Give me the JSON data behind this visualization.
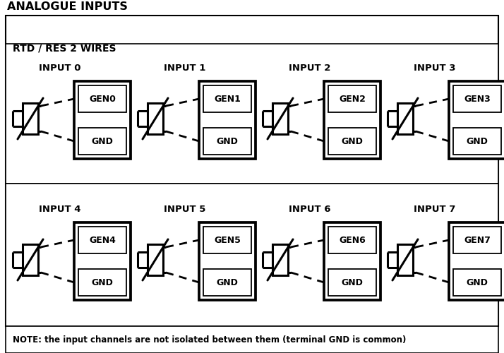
{
  "title": "ANALOGUE INPUTS",
  "subtitle": "RTD / RES 2 WIRES",
  "note": "NOTE: the input channels are not isolated between them (terminal GND is common)",
  "inputs": [
    "INPUT 0",
    "INPUT 1",
    "INPUT 2",
    "INPUT 3",
    "INPUT 4",
    "INPUT 5",
    "INPUT 6",
    "INPUT 7"
  ],
  "gen_labels": [
    "GEN0",
    "GEN1",
    "GEN2",
    "GEN3",
    "GEN4",
    "GEN5",
    "GEN6",
    "GEN7"
  ],
  "gnd_label": "GND",
  "bg_color": "#ffffff",
  "border_color": "#000000",
  "text_color": "#000000"
}
